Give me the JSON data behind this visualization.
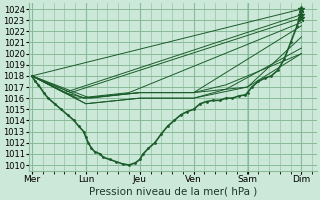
{
  "background_color": "#cce8d8",
  "grid_color": "#88bb99",
  "line_color": "#1a5c2a",
  "ylim": [
    1009.5,
    1024.5
  ],
  "ylabel_fontsize": 6,
  "xlabel_label": "Pression niveau de la mer( hPa )",
  "xlabel_fontsize": 7.5,
  "day_labels": [
    "Mer",
    "Lun",
    "Jeu",
    "Ven",
    "Sam",
    "Dim"
  ],
  "day_positions": [
    0,
    0.833,
    1.667,
    2.5,
    3.333,
    4.167
  ],
  "xlim": [
    -0.05,
    4.4
  ],
  "yticks": [
    1010,
    1011,
    1012,
    1013,
    1014,
    1015,
    1016,
    1017,
    1018,
    1019,
    1020,
    1021,
    1022,
    1023,
    1024
  ],
  "forecast_lines": [
    {
      "x": [
        0.0,
        4.167
      ],
      "y": [
        1018.0,
        1024.0
      ]
    },
    {
      "x": [
        0.0,
        0.5,
        4.167
      ],
      "y": [
        1018.0,
        1016.5,
        1023.5
      ]
    },
    {
      "x": [
        0.0,
        0.6,
        4.167
      ],
      "y": [
        1018.0,
        1016.5,
        1023.2
      ]
    },
    {
      "x": [
        0.0,
        0.7,
        1.5,
        4.167
      ],
      "y": [
        1018.0,
        1016.0,
        1016.5,
        1022.8
      ]
    },
    {
      "x": [
        0.0,
        0.8,
        1.667,
        2.5,
        4.167
      ],
      "y": [
        1018.0,
        1016.0,
        1016.5,
        1016.5,
        1022.5
      ]
    },
    {
      "x": [
        0.0,
        0.9,
        1.667,
        2.5,
        3.333,
        4.167
      ],
      "y": [
        1018.0,
        1016.0,
        1016.5,
        1016.5,
        1017.0,
        1021.5
      ]
    },
    {
      "x": [
        0.0,
        0.833,
        1.667,
        2.5,
        3.0,
        4.167
      ],
      "y": [
        1018.0,
        1015.5,
        1016.0,
        1016.0,
        1016.8,
        1020.5
      ]
    },
    {
      "x": [
        0.0,
        0.833,
        1.667,
        2.5,
        3.333,
        4.167
      ],
      "y": [
        1018.0,
        1015.5,
        1016.0,
        1016.0,
        1017.0,
        1020.0
      ]
    },
    {
      "x": [
        0.0,
        0.5,
        0.833,
        1.667,
        2.5,
        3.0,
        4.167
      ],
      "y": [
        1018.0,
        1016.5,
        1016.0,
        1016.5,
        1016.5,
        1017.2,
        1020.0
      ]
    }
  ],
  "main_x": [
    0.0,
    0.05,
    0.1,
    0.18,
    0.25,
    0.35,
    0.45,
    0.55,
    0.65,
    0.72,
    0.8,
    0.833,
    0.87,
    0.92,
    0.97,
    1.05,
    1.1,
    1.2,
    1.3,
    1.4,
    1.5,
    1.6,
    1.667,
    1.72,
    1.8,
    1.9,
    2.0,
    2.1,
    2.2,
    2.3,
    2.4,
    2.5,
    2.6,
    2.7,
    2.8,
    2.9,
    3.0,
    3.1,
    3.2,
    3.3,
    3.333,
    3.4,
    3.5,
    3.6,
    3.7,
    3.8,
    3.9,
    4.0,
    4.1,
    4.167
  ],
  "main_y": [
    1018.0,
    1017.5,
    1017.2,
    1016.5,
    1016.0,
    1015.5,
    1015.0,
    1014.5,
    1014.0,
    1013.5,
    1013.0,
    1012.5,
    1012.0,
    1011.5,
    1011.2,
    1011.0,
    1010.7,
    1010.5,
    1010.3,
    1010.1,
    1010.0,
    1010.2,
    1010.5,
    1011.0,
    1011.5,
    1012.0,
    1012.8,
    1013.5,
    1014.0,
    1014.5,
    1014.8,
    1015.0,
    1015.5,
    1015.7,
    1015.8,
    1015.8,
    1016.0,
    1016.0,
    1016.2,
    1016.3,
    1016.5,
    1017.0,
    1017.5,
    1017.8,
    1018.0,
    1018.5,
    1019.5,
    1021.0,
    1022.5,
    1024.0
  ]
}
